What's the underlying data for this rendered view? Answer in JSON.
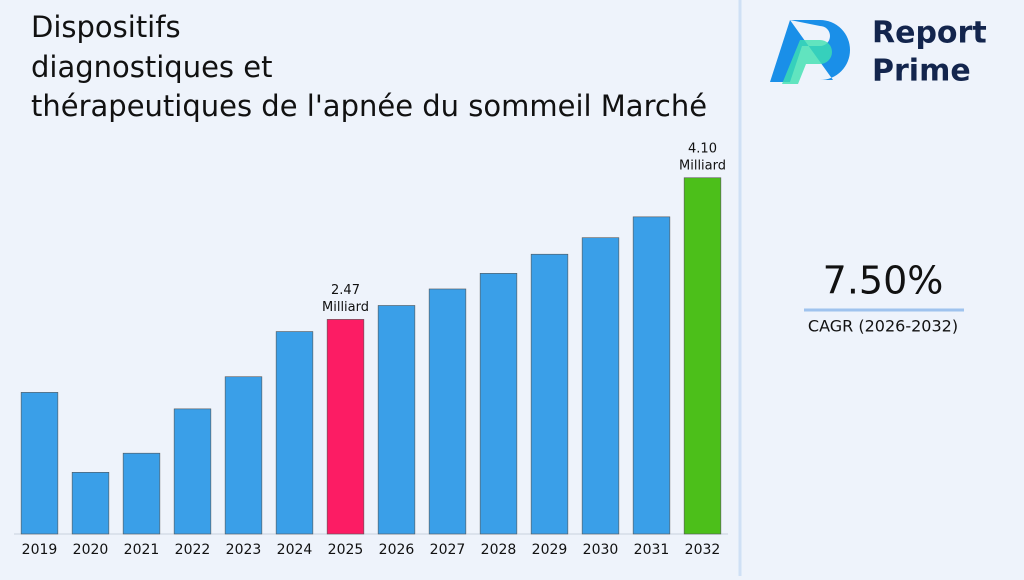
{
  "chart_data": {
    "type": "bar",
    "title_lines": [
      "Dispositifs",
      "diagnostiques et",
      "thérapeutiques de l'apnée du sommeil Marché"
    ],
    "categories": [
      "2019",
      "2020",
      "2021",
      "2022",
      "2023",
      "2024",
      "2025",
      "2026",
      "2027",
      "2028",
      "2029",
      "2030",
      "2031",
      "2032"
    ],
    "values": [
      1.63,
      0.71,
      0.93,
      1.44,
      1.81,
      2.33,
      2.47,
      2.63,
      2.82,
      3.0,
      3.22,
      3.41,
      3.65,
      4.1
    ],
    "value_labels": [
      null,
      null,
      null,
      null,
      null,
      null,
      "2.47",
      null,
      null,
      null,
      null,
      null,
      null,
      "4.10"
    ],
    "value_unit": "Milliard",
    "colors": [
      "#3a9fe8",
      "#3a9fe8",
      "#3a9fe8",
      "#3a9fe8",
      "#3a9fe8",
      "#3a9fe8",
      "#fc1c64",
      "#3a9fe8",
      "#3a9fe8",
      "#3a9fe8",
      "#3a9fe8",
      "#3a9fe8",
      "#3a9fe8",
      "#4cbf1a"
    ],
    "ylim": [
      0,
      4.5
    ],
    "cagr": {
      "value": "7.50%",
      "label": "CAGR (2026-2032)"
    },
    "logo": {
      "line1": "Report",
      "line2": "Prime"
    }
  }
}
